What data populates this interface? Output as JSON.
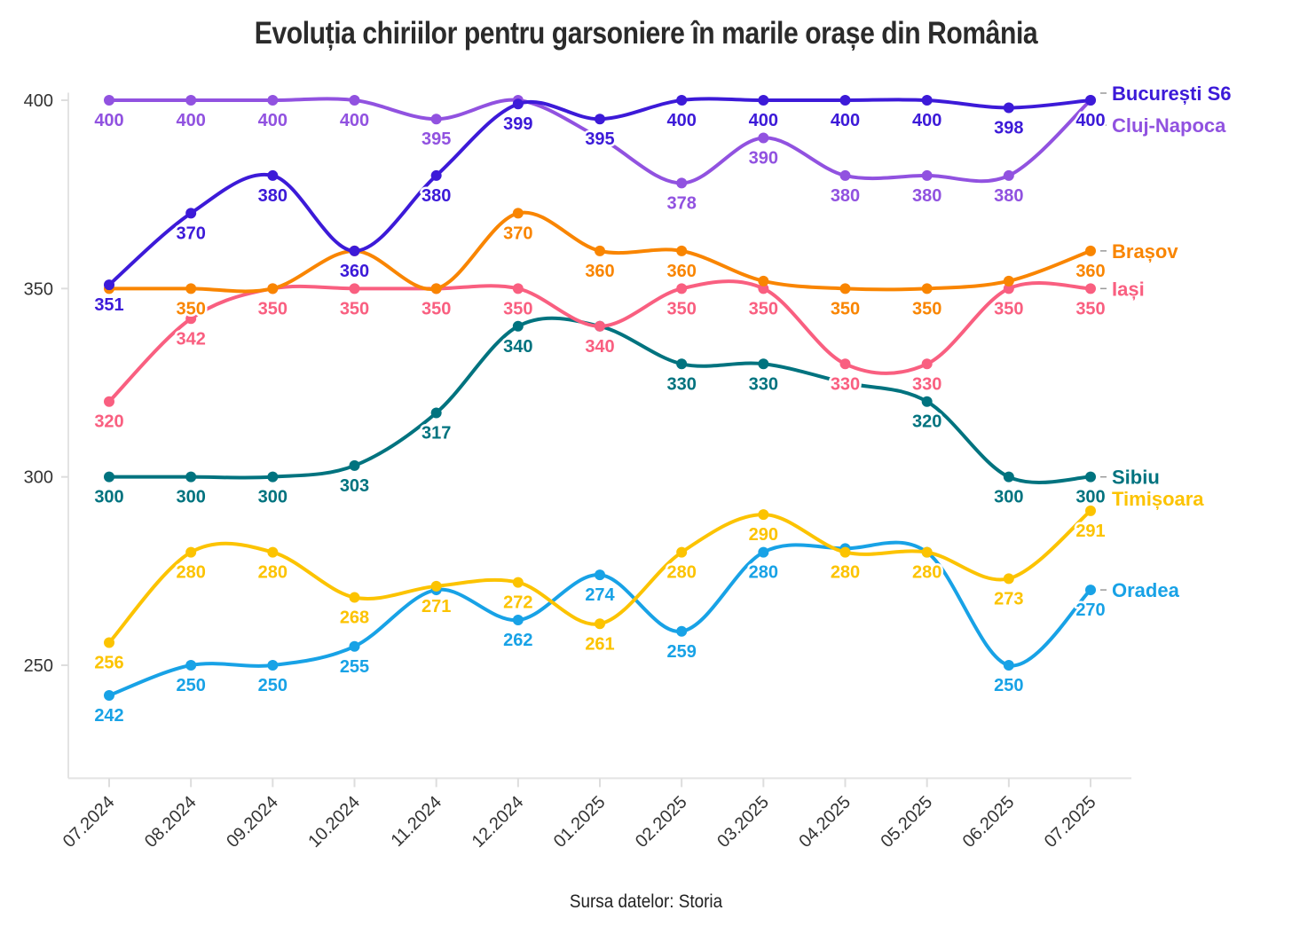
{
  "chart_data": {
    "type": "line",
    "title": "Evoluția chiriilor pentru garsoniere în marile orașe din România",
    "source": "Sursa datelor: Storia",
    "xlabel": "",
    "ylabel": "",
    "ylim": [
      220,
      402
    ],
    "yticks": [
      250,
      300,
      350,
      400
    ],
    "grid": false,
    "legend": "right (direct labels)",
    "categories": [
      "07.2024",
      "08.2024",
      "09.2024",
      "10.2024",
      "11.2024",
      "12.2024",
      "01.2025",
      "02.2025",
      "03.2025",
      "04.2025",
      "05.2025",
      "06.2025",
      "07.2025"
    ],
    "series": [
      {
        "name": "București S6",
        "color": "#3c1ad8",
        "values": [
          351,
          370,
          380,
          360,
          380,
          399,
          395,
          400,
          400,
          400,
          400,
          398,
          400
        ]
      },
      {
        "name": "Cluj-Napoca",
        "color": "#9152e0",
        "values": [
          400,
          400,
          400,
          400,
          395,
          400,
          390,
          378,
          390,
          380,
          380,
          380,
          400
        ]
      },
      {
        "name": "Brașov",
        "color": "#f98500",
        "values": [
          350,
          350,
          350,
          360,
          350,
          370,
          360,
          360,
          352,
          350,
          350,
          352,
          360
        ]
      },
      {
        "name": "Iași",
        "color": "#f95f80",
        "values": [
          320,
          342,
          350,
          350,
          350,
          350,
          340,
          350,
          350,
          330,
          330,
          350,
          350
        ]
      },
      {
        "name": "Sibiu",
        "color": "#00737f",
        "values": [
          300,
          300,
          300,
          303,
          317,
          340,
          340,
          330,
          330,
          325,
          320,
          300,
          300
        ]
      },
      {
        "name": "Timișoara",
        "color": "#fcc300",
        "values": [
          256,
          280,
          280,
          268,
          271,
          272,
          261,
          280,
          290,
          280,
          280,
          273,
          291
        ]
      },
      {
        "name": "Oradea",
        "color": "#18a2e6",
        "values": [
          242,
          250,
          250,
          255,
          270,
          262,
          274,
          259,
          280,
          281,
          280,
          250,
          270
        ]
      }
    ]
  }
}
